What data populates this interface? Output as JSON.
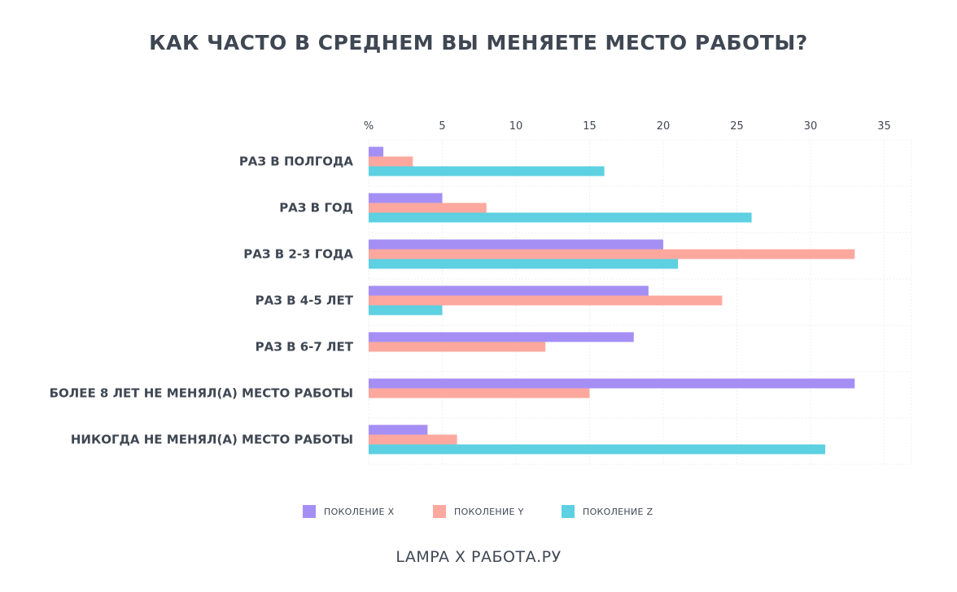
{
  "chart_data": {
    "type": "bar",
    "orientation": "horizontal",
    "title": "КАК ЧАСТО В СРЕДНЕМ ВЫ МЕНЯЕТЕ МЕСТО РАБОТЫ?",
    "axis_unit_label": "%",
    "xlim": [
      0,
      37
    ],
    "ticks": [
      5,
      10,
      15,
      20,
      25,
      30,
      35
    ],
    "categories": [
      "РАЗ В ПОЛГОДА",
      "РАЗ В ГОД",
      "РАЗ В 2-3 ГОДА",
      "РАЗ В 4-5 ЛЕТ",
      "РАЗ В 6-7 ЛЕТ",
      "БОЛЕЕ 8 ЛЕТ НЕ МЕНЯЛ(А) МЕСТО РАБОТЫ",
      "НИКОГДА НЕ МЕНЯЛ(А) МЕСТО РАБОТЫ"
    ],
    "series": [
      {
        "name": "ПОКОЛЕНИЕ X",
        "color": "#a58ff5",
        "values": [
          1,
          5,
          20,
          19,
          18,
          33,
          4
        ]
      },
      {
        "name": "ПОКОЛЕНИЕ Y",
        "color": "#fda89e",
        "values": [
          3,
          8,
          33,
          24,
          12,
          15,
          6
        ]
      },
      {
        "name": "ПОКОЛЕНИЕ Z",
        "color": "#5dd0e2",
        "values": [
          16,
          26,
          21,
          5,
          0,
          0,
          31
        ]
      }
    ],
    "grid": true
  },
  "source": "LAMPA X РАБОТА.РУ"
}
